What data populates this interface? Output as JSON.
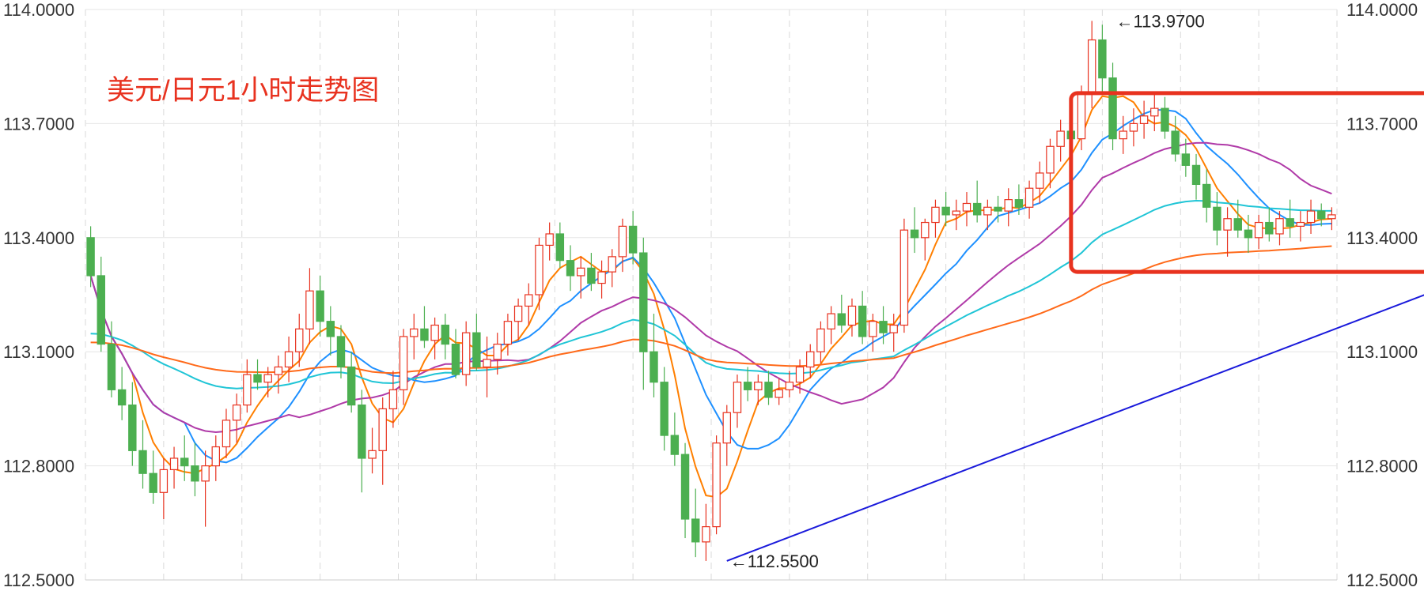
{
  "chart_data": {
    "type": "candlestick",
    "title": "美元/日元1小时走势图",
    "y_ticks": [
      "114.0000",
      "113.7000",
      "113.4000",
      "113.1000",
      "112.8000",
      "112.5000"
    ],
    "y_tick_values": [
      114.0,
      113.7,
      113.4,
      113.1,
      112.8,
      112.5
    ],
    "ylim": [
      112.5,
      114.0
    ],
    "grid": true,
    "annotations": [
      {
        "label": "←113.9700",
        "value": 113.97,
        "bar": 98
      },
      {
        "label": "←112.5500",
        "value": 112.55,
        "bar": 61
      }
    ],
    "trendline": {
      "from_bar": 61,
      "from_value": 112.55,
      "to_bar": 170,
      "to_value": 113.69,
      "color": "#1a1adb"
    },
    "highlight_box": {
      "from_bar": 95,
      "to_bar": 176,
      "y_min": 113.31,
      "y_max": 113.78,
      "color": "#e8321f"
    },
    "candle_colors": {
      "up": "#e8321f",
      "down": "#4caf50"
    },
    "indicator_colors": [
      "#ff7f00",
      "#1e90ff",
      "#b03aa8",
      "#20c5d6",
      "#ff6a1a"
    ],
    "candles": [
      [
        113.4,
        113.43,
        113.27,
        113.3
      ],
      [
        113.3,
        113.35,
        113.1,
        113.12
      ],
      [
        113.12,
        113.18,
        112.98,
        113.0
      ],
      [
        113.0,
        113.06,
        112.92,
        112.96
      ],
      [
        112.96,
        113.02,
        112.8,
        112.84
      ],
      [
        112.84,
        112.92,
        112.74,
        112.78
      ],
      [
        112.78,
        112.84,
        112.7,
        112.73
      ],
      [
        112.73,
        112.82,
        112.66,
        112.79
      ],
      [
        112.79,
        112.85,
        112.74,
        112.82
      ],
      [
        112.82,
        112.88,
        112.76,
        112.8
      ],
      [
        112.8,
        112.86,
        112.72,
        112.76
      ],
      [
        112.76,
        112.84,
        112.64,
        112.8
      ],
      [
        112.8,
        112.88,
        112.76,
        112.85
      ],
      [
        112.85,
        112.95,
        112.82,
        112.92
      ],
      [
        112.92,
        112.99,
        112.86,
        112.96
      ],
      [
        112.96,
        113.08,
        112.94,
        113.04
      ],
      [
        113.04,
        113.08,
        113.0,
        113.02
      ],
      [
        113.02,
        113.06,
        112.98,
        113.04
      ],
      [
        113.04,
        113.09,
        112.99,
        113.06
      ],
      [
        113.06,
        113.14,
        113.02,
        113.1
      ],
      [
        113.1,
        113.2,
        113.06,
        113.16
      ],
      [
        113.16,
        113.32,
        113.12,
        113.26
      ],
      [
        113.26,
        113.3,
        113.14,
        113.18
      ],
      [
        113.18,
        113.22,
        113.09,
        113.14
      ],
      [
        113.14,
        113.17,
        113.03,
        113.06
      ],
      [
        113.06,
        113.1,
        112.94,
        112.96
      ],
      [
        112.96,
        113.0,
        112.73,
        112.82
      ],
      [
        112.82,
        112.9,
        112.78,
        112.84
      ],
      [
        112.84,
        112.98,
        112.75,
        112.95
      ],
      [
        112.95,
        113.05,
        112.9,
        113.0
      ],
      [
        113.0,
        113.16,
        112.96,
        113.14
      ],
      [
        113.14,
        113.2,
        113.08,
        113.16
      ],
      [
        113.16,
        113.22,
        113.11,
        113.13
      ],
      [
        113.13,
        113.19,
        113.08,
        113.17
      ],
      [
        113.17,
        113.2,
        113.08,
        113.12
      ],
      [
        113.12,
        113.16,
        113.03,
        113.04
      ],
      [
        113.04,
        113.18,
        113.01,
        113.15
      ],
      [
        113.15,
        113.2,
        113.05,
        113.06
      ],
      [
        113.06,
        113.14,
        112.98,
        113.08
      ],
      [
        113.08,
        113.15,
        113.04,
        113.12
      ],
      [
        113.12,
        113.2,
        113.09,
        113.18
      ],
      [
        113.18,
        113.24,
        113.13,
        113.22
      ],
      [
        113.22,
        113.28,
        113.17,
        113.25
      ],
      [
        113.25,
        113.4,
        113.21,
        113.38
      ],
      [
        113.38,
        113.44,
        113.34,
        113.41
      ],
      [
        113.41,
        113.44,
        113.32,
        113.34
      ],
      [
        113.34,
        113.38,
        113.26,
        113.3
      ],
      [
        113.3,
        113.35,
        113.24,
        113.32
      ],
      [
        113.32,
        113.36,
        113.26,
        113.28
      ],
      [
        113.28,
        113.34,
        113.24,
        113.31
      ],
      [
        113.31,
        113.37,
        113.27,
        113.35
      ],
      [
        113.35,
        113.45,
        113.31,
        113.43
      ],
      [
        113.43,
        113.47,
        113.33,
        113.36
      ],
      [
        113.36,
        113.4,
        113.0,
        113.1
      ],
      [
        113.1,
        113.2,
        112.98,
        113.02
      ],
      [
        113.02,
        113.06,
        112.84,
        112.88
      ],
      [
        112.88,
        112.94,
        112.8,
        112.83
      ],
      [
        112.83,
        112.86,
        112.61,
        112.66
      ],
      [
        112.66,
        112.74,
        112.56,
        112.6
      ],
      [
        112.6,
        112.7,
        112.55,
        112.64
      ],
      [
        112.64,
        112.88,
        112.62,
        112.86
      ],
      [
        112.86,
        112.96,
        112.8,
        112.94
      ],
      [
        112.94,
        113.04,
        112.9,
        113.02
      ],
      [
        113.02,
        113.06,
        112.97,
        113.0
      ],
      [
        113.0,
        113.04,
        112.96,
        113.02
      ],
      [
        113.02,
        113.05,
        112.96,
        112.98
      ],
      [
        112.98,
        113.03,
        112.96,
        113.0
      ],
      [
        113.0,
        113.05,
        112.98,
        113.02
      ],
      [
        113.02,
        113.08,
        112.99,
        113.06
      ],
      [
        113.06,
        113.12,
        113.03,
        113.1
      ],
      [
        113.1,
        113.18,
        113.07,
        113.16
      ],
      [
        113.16,
        113.22,
        113.12,
        113.2
      ],
      [
        113.2,
        113.25,
        113.15,
        113.17
      ],
      [
        113.17,
        113.24,
        113.14,
        113.22
      ],
      [
        113.22,
        113.26,
        113.12,
        113.14
      ],
      [
        113.14,
        113.2,
        113.1,
        113.18
      ],
      [
        113.18,
        113.22,
        113.12,
        113.15
      ],
      [
        113.15,
        113.2,
        113.1,
        113.17
      ],
      [
        113.17,
        113.45,
        113.15,
        113.42
      ],
      [
        113.42,
        113.48,
        113.36,
        113.4
      ],
      [
        113.4,
        113.45,
        113.34,
        113.44
      ],
      [
        113.44,
        113.5,
        113.4,
        113.48
      ],
      [
        113.48,
        113.52,
        113.43,
        113.46
      ],
      [
        113.46,
        113.5,
        113.42,
        113.47
      ],
      [
        113.47,
        113.52,
        113.43,
        113.49
      ],
      [
        113.49,
        113.55,
        113.44,
        113.46
      ],
      [
        113.46,
        113.5,
        113.42,
        113.48
      ],
      [
        113.48,
        113.51,
        113.44,
        113.47
      ],
      [
        113.47,
        113.53,
        113.43,
        113.5
      ],
      [
        113.5,
        113.54,
        113.46,
        113.48
      ],
      [
        113.48,
        113.55,
        113.45,
        113.53
      ],
      [
        113.53,
        113.6,
        113.49,
        113.57
      ],
      [
        113.57,
        113.66,
        113.53,
        113.64
      ],
      [
        113.64,
        113.71,
        113.6,
        113.68
      ],
      [
        113.68,
        113.72,
        113.64,
        113.66
      ],
      [
        113.66,
        113.8,
        113.63,
        113.78
      ],
      [
        113.78,
        113.97,
        113.74,
        113.92
      ],
      [
        113.92,
        113.96,
        113.78,
        113.82
      ],
      [
        113.82,
        113.86,
        113.63,
        113.66
      ],
      [
        113.66,
        113.72,
        113.62,
        113.68
      ],
      [
        113.68,
        113.74,
        113.64,
        113.7
      ],
      [
        113.7,
        113.76,
        113.66,
        113.72
      ],
      [
        113.72,
        113.78,
        113.68,
        113.74
      ],
      [
        113.74,
        113.77,
        113.66,
        113.68
      ],
      [
        113.68,
        113.72,
        113.6,
        113.62
      ],
      [
        113.62,
        113.66,
        113.56,
        113.59
      ],
      [
        113.59,
        113.62,
        113.5,
        113.54
      ],
      [
        113.54,
        113.58,
        113.44,
        113.48
      ],
      [
        113.48,
        113.52,
        113.38,
        113.42
      ],
      [
        113.42,
        113.48,
        113.35,
        113.45
      ],
      [
        113.45,
        113.5,
        113.4,
        113.42
      ],
      [
        113.42,
        113.46,
        113.36,
        113.4
      ],
      [
        113.4,
        113.46,
        113.37,
        113.44
      ],
      [
        113.44,
        113.48,
        113.39,
        113.41
      ],
      [
        113.41,
        113.47,
        113.38,
        113.45
      ],
      [
        113.45,
        113.5,
        113.4,
        113.43
      ],
      [
        113.43,
        113.47,
        113.39,
        113.44
      ],
      [
        113.44,
        113.5,
        113.41,
        113.47
      ],
      [
        113.47,
        113.49,
        113.43,
        113.45
      ],
      [
        113.45,
        113.48,
        113.42,
        113.46
      ]
    ]
  }
}
